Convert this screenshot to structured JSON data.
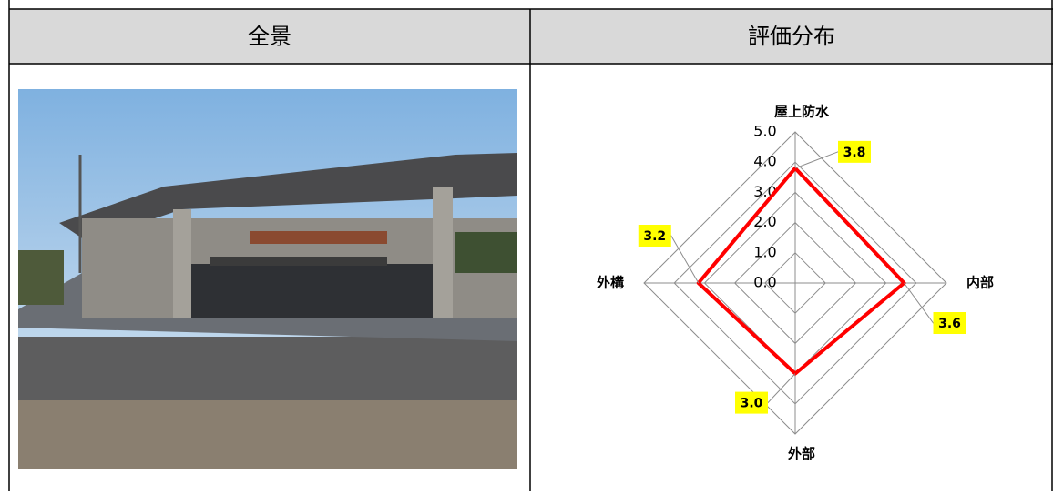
{
  "header": {
    "photo": "全景",
    "chart": "評価分布"
  },
  "chart_data": {
    "type": "radar",
    "categories": [
      "屋上防水",
      "内部",
      "外部",
      "外構"
    ],
    "values": [
      3.8,
      3.6,
      3.0,
      3.2
    ],
    "value_labels": [
      "3.8",
      "3.6",
      "3.0",
      "3.2"
    ],
    "color": "#ff0000",
    "rlim": [
      0,
      5
    ],
    "rticks": [
      {
        "value": 0,
        "label": "0.0"
      },
      {
        "value": 1,
        "label": "1.0"
      },
      {
        "value": 2,
        "label": "2.0"
      },
      {
        "value": 3,
        "label": "3.0"
      },
      {
        "value": 4,
        "label": "4.0"
      },
      {
        "value": 5,
        "label": "5.0"
      }
    ],
    "grid": true
  }
}
